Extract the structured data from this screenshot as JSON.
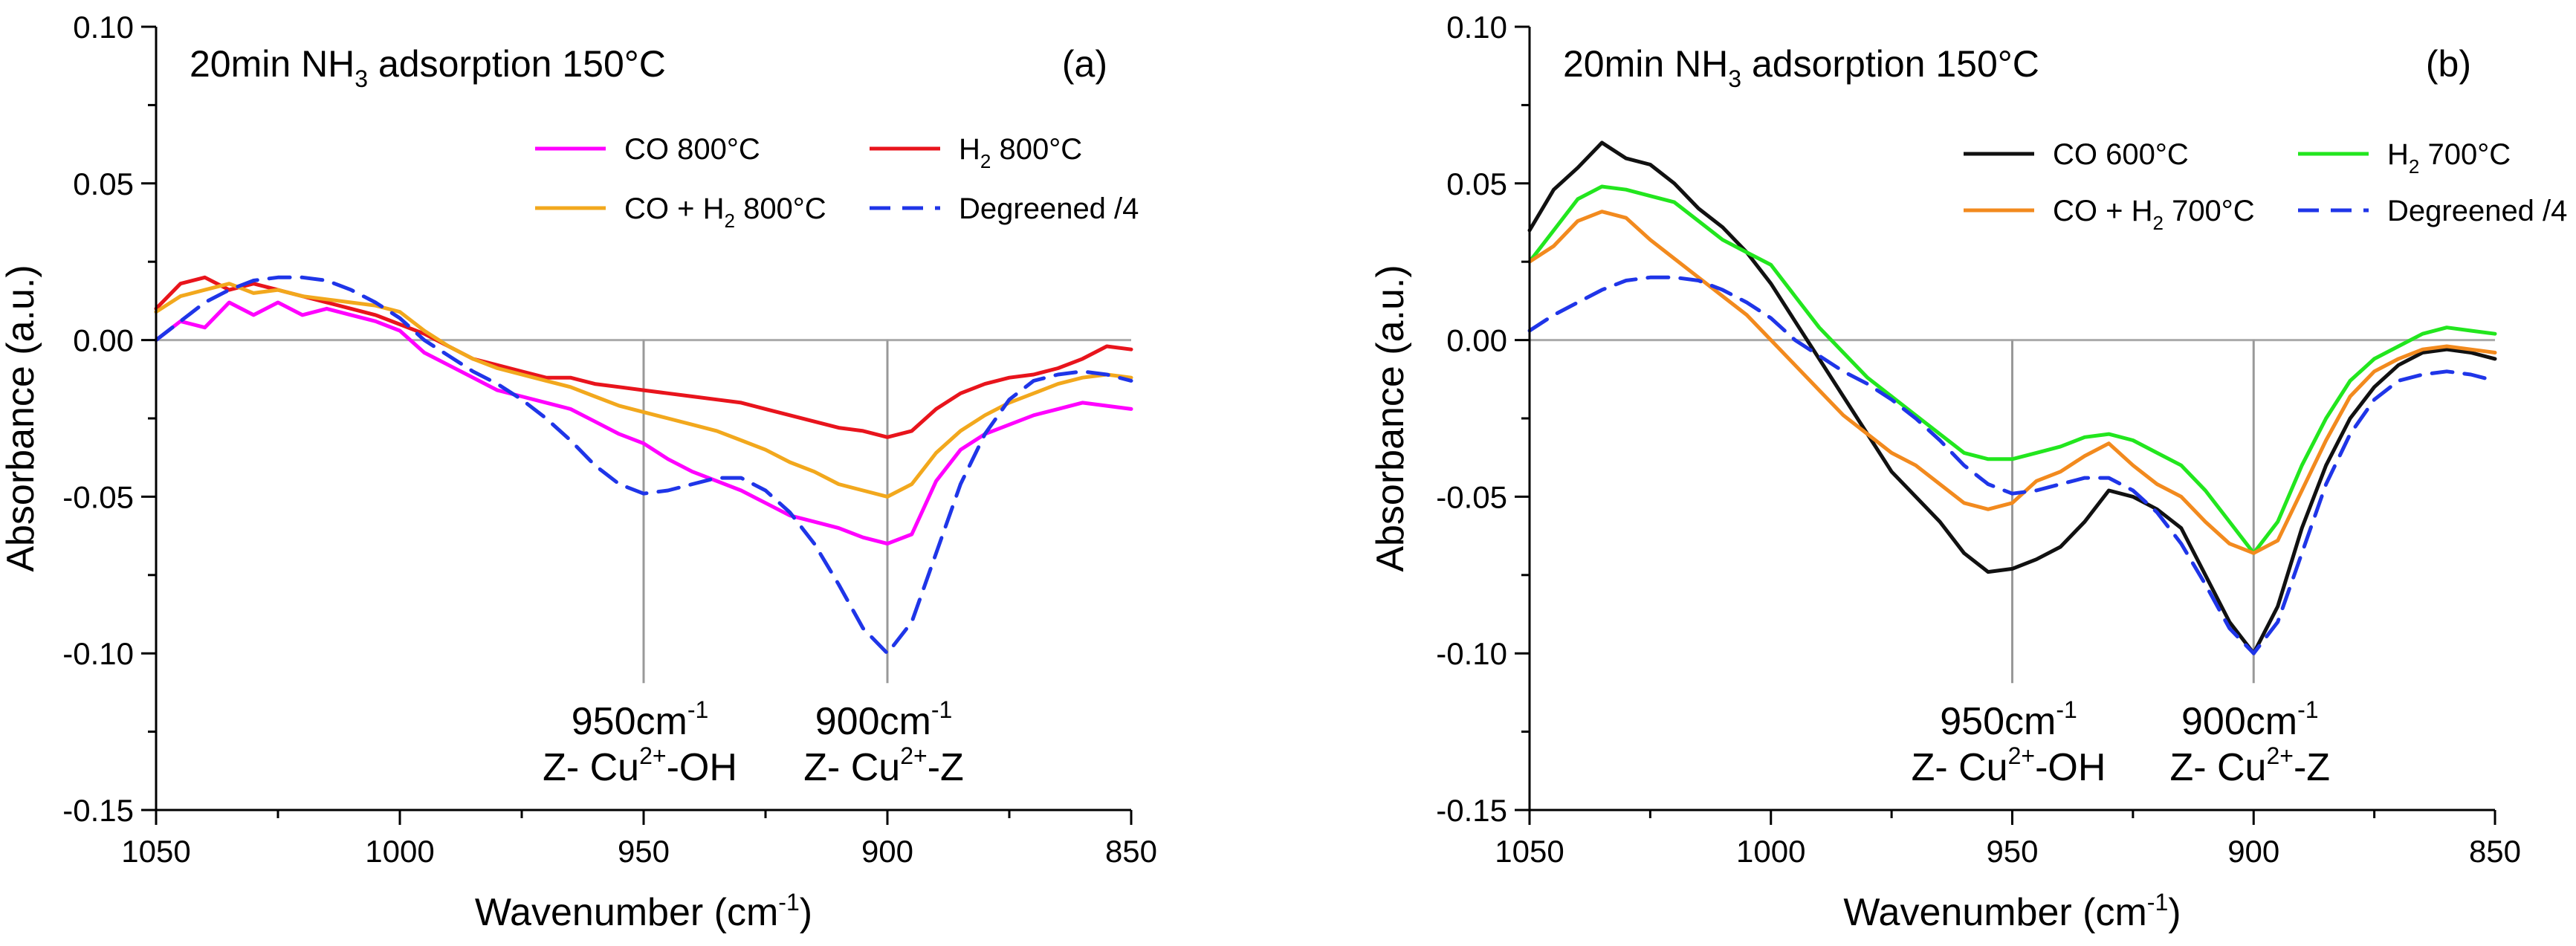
{
  "chart_data": [
    {
      "type": "line",
      "panel_label": "(a)",
      "title_main": "20min NH",
      "title_sub": "3",
      "title_rest": " adsorption 150°C",
      "xlabel": "Wavenumber (cm",
      "xlabel_sup": "-1",
      "xlabel_end": ")",
      "ylabel": "Absorbance (a.u.)",
      "xlim": [
        1050,
        850
      ],
      "ylim": [
        -0.15,
        0.1
      ],
      "xticks": [
        1050,
        1000,
        950,
        900,
        850
      ],
      "xtick_labels": [
        "1050",
        "1000",
        "950",
        "900",
        "850"
      ],
      "yticks": [
        0.1,
        0.05,
        0.0,
        -0.05,
        -0.1,
        -0.15
      ],
      "ytick_labels": [
        "0.10",
        "0.05",
        "0.00",
        "-0.05",
        "-0.10",
        "-0.15"
      ],
      "annotations": [
        {
          "x": 950,
          "line_top": -0.1,
          "line_bottom": 0.0,
          "line1": "950cm",
          "line1_sup": "-1",
          "line2a": "Z- Cu",
          "line2_sup": "2+",
          "line2b": "-OH"
        },
        {
          "x": 900,
          "line_top": -0.1,
          "line_bottom": 0.0,
          "line1": "900cm",
          "line1_sup": "-1",
          "line2a": "Z- Cu",
          "line2_sup": "2+",
          "line2b": "-Z"
        }
      ],
      "series": [
        {
          "name": "CO 800°C",
          "legend_main": "CO 800°C",
          "color": "#ff00ff",
          "dash": "solid",
          "x": [
            1050,
            1045,
            1040,
            1035,
            1030,
            1025,
            1020,
            1015,
            1010,
            1005,
            1000,
            995,
            990,
            985,
            980,
            975,
            970,
            965,
            960,
            955,
            950,
            945,
            940,
            935,
            930,
            925,
            920,
            915,
            910,
            905,
            900,
            895,
            890,
            885,
            880,
            875,
            870,
            865,
            860,
            855,
            850
          ],
          "y": [
            0.0,
            0.006,
            0.004,
            0.012,
            0.008,
            0.012,
            0.008,
            0.01,
            0.008,
            0.006,
            0.003,
            -0.004,
            -0.008,
            -0.012,
            -0.016,
            -0.018,
            -0.02,
            -0.022,
            -0.026,
            -0.03,
            -0.033,
            -0.038,
            -0.042,
            -0.045,
            -0.048,
            -0.052,
            -0.056,
            -0.058,
            -0.06,
            -0.063,
            -0.065,
            -0.062,
            -0.045,
            -0.035,
            -0.03,
            -0.027,
            -0.024,
            -0.022,
            -0.02,
            -0.021,
            -0.022
          ]
        },
        {
          "name": "H2 800°C",
          "legend_main": "H",
          "legend_sub": "2",
          "legend_rest": " 800°C",
          "color": "#e8141c",
          "dash": "solid",
          "x": [
            1050,
            1045,
            1040,
            1035,
            1030,
            1025,
            1020,
            1015,
            1010,
            1005,
            1000,
            995,
            990,
            985,
            980,
            975,
            970,
            965,
            960,
            955,
            950,
            945,
            940,
            935,
            930,
            925,
            920,
            915,
            910,
            905,
            900,
            895,
            890,
            885,
            880,
            875,
            870,
            865,
            860,
            855,
            850
          ],
          "y": [
            0.01,
            0.018,
            0.02,
            0.016,
            0.018,
            0.016,
            0.014,
            0.012,
            0.01,
            0.008,
            0.005,
            0.002,
            -0.002,
            -0.006,
            -0.008,
            -0.01,
            -0.012,
            -0.012,
            -0.014,
            -0.015,
            -0.016,
            -0.017,
            -0.018,
            -0.019,
            -0.02,
            -0.022,
            -0.024,
            -0.026,
            -0.028,
            -0.029,
            -0.031,
            -0.029,
            -0.022,
            -0.017,
            -0.014,
            -0.012,
            -0.011,
            -0.009,
            -0.006,
            -0.002,
            -0.003
          ]
        },
        {
          "name": "CO + H2 800°C",
          "legend_main": "CO + H",
          "legend_sub": "2",
          "legend_rest": " 800°C",
          "color": "#f2a81d",
          "dash": "solid",
          "x": [
            1050,
            1045,
            1040,
            1035,
            1030,
            1025,
            1020,
            1015,
            1010,
            1005,
            1000,
            995,
            990,
            985,
            980,
            975,
            970,
            965,
            960,
            955,
            950,
            945,
            940,
            935,
            930,
            925,
            920,
            915,
            910,
            905,
            900,
            895,
            890,
            885,
            880,
            875,
            870,
            865,
            860,
            855,
            850
          ],
          "y": [
            0.009,
            0.014,
            0.016,
            0.018,
            0.015,
            0.016,
            0.014,
            0.013,
            0.012,
            0.011,
            0.009,
            0.003,
            -0.002,
            -0.006,
            -0.009,
            -0.011,
            -0.013,
            -0.015,
            -0.018,
            -0.021,
            -0.023,
            -0.025,
            -0.027,
            -0.029,
            -0.032,
            -0.035,
            -0.039,
            -0.042,
            -0.046,
            -0.048,
            -0.05,
            -0.046,
            -0.036,
            -0.029,
            -0.024,
            -0.02,
            -0.017,
            -0.014,
            -0.012,
            -0.011,
            -0.012
          ]
        },
        {
          "name": "Degreened /4",
          "legend_main": "Degreened /4",
          "color": "#1f35e8",
          "dash": "dashed",
          "x": [
            1050,
            1045,
            1040,
            1035,
            1030,
            1025,
            1020,
            1015,
            1010,
            1005,
            1000,
            995,
            990,
            985,
            980,
            975,
            970,
            965,
            960,
            955,
            950,
            945,
            940,
            935,
            930,
            925,
            920,
            915,
            910,
            905,
            900,
            895,
            890,
            885,
            880,
            875,
            870,
            865,
            860,
            855,
            850
          ],
          "y": [
            0.0,
            0.006,
            0.012,
            0.016,
            0.019,
            0.02,
            0.02,
            0.019,
            0.016,
            0.012,
            0.007,
            0.0,
            -0.005,
            -0.01,
            -0.014,
            -0.019,
            -0.025,
            -0.032,
            -0.04,
            -0.046,
            -0.049,
            -0.048,
            -0.046,
            -0.044,
            -0.044,
            -0.048,
            -0.055,
            -0.065,
            -0.078,
            -0.092,
            -0.1,
            -0.09,
            -0.068,
            -0.046,
            -0.03,
            -0.019,
            -0.013,
            -0.011,
            -0.01,
            -0.011,
            -0.013
          ]
        }
      ]
    },
    {
      "type": "line",
      "panel_label": "(b)",
      "title_main": "20min NH",
      "title_sub": "3",
      "title_rest": " adsorption 150°C",
      "xlabel": "Wavenumber (cm",
      "xlabel_sup": "-1",
      "xlabel_end": ")",
      "ylabel": "Absorbance (a.u.)",
      "xlim": [
        1050,
        850
      ],
      "ylim": [
        -0.15,
        0.1
      ],
      "xticks": [
        1050,
        1000,
        950,
        900,
        850
      ],
      "xtick_labels": [
        "1050",
        "1000",
        "950",
        "900",
        "850"
      ],
      "yticks": [
        0.1,
        0.05,
        0.0,
        -0.05,
        -0.1,
        -0.15
      ],
      "ytick_labels": [
        "0.10",
        "0.05",
        "0.00",
        "-0.05",
        "-0.10",
        "-0.15"
      ],
      "annotations": [
        {
          "x": 950,
          "line_top": -0.1,
          "line_bottom": 0.0,
          "line1": "950cm",
          "line1_sup": "-1",
          "line2a": "Z- Cu",
          "line2_sup": "2+",
          "line2b": "-OH"
        },
        {
          "x": 900,
          "line_top": -0.1,
          "line_bottom": 0.0,
          "line1": "900cm",
          "line1_sup": "-1",
          "line2a": "Z- Cu",
          "line2_sup": "2+",
          "line2b": "-Z"
        }
      ],
      "series": [
        {
          "name": "CO 600°C",
          "legend_main": "CO 600°C",
          "color": "#111111",
          "dash": "solid",
          "x": [
            1050,
            1045,
            1040,
            1035,
            1030,
            1025,
            1020,
            1015,
            1010,
            1005,
            1000,
            995,
            990,
            985,
            980,
            975,
            970,
            965,
            960,
            955,
            950,
            945,
            940,
            935,
            930,
            925,
            920,
            915,
            910,
            905,
            900,
            895,
            890,
            885,
            880,
            875,
            870,
            865,
            860,
            855,
            850
          ],
          "y": [
            0.035,
            0.048,
            0.055,
            0.063,
            0.058,
            0.056,
            0.05,
            0.042,
            0.036,
            0.028,
            0.018,
            0.006,
            -0.006,
            -0.018,
            -0.03,
            -0.042,
            -0.05,
            -0.058,
            -0.068,
            -0.074,
            -0.073,
            -0.07,
            -0.066,
            -0.058,
            -0.048,
            -0.05,
            -0.054,
            -0.06,
            -0.075,
            -0.09,
            -0.1,
            -0.085,
            -0.06,
            -0.04,
            -0.025,
            -0.015,
            -0.008,
            -0.004,
            -0.003,
            -0.004,
            -0.006
          ]
        },
        {
          "name": "H2 700°C",
          "legend_main": "H",
          "legend_sub": "2",
          "legend_rest": " 700°C",
          "color": "#22e61e",
          "dash": "solid",
          "x": [
            1050,
            1045,
            1040,
            1035,
            1030,
            1025,
            1020,
            1015,
            1010,
            1005,
            1000,
            995,
            990,
            985,
            980,
            975,
            970,
            965,
            960,
            955,
            950,
            945,
            940,
            935,
            930,
            925,
            920,
            915,
            910,
            905,
            900,
            895,
            890,
            885,
            880,
            875,
            870,
            865,
            860,
            855,
            850
          ],
          "y": [
            0.025,
            0.035,
            0.045,
            0.049,
            0.048,
            0.046,
            0.044,
            0.038,
            0.032,
            0.028,
            0.024,
            0.014,
            0.004,
            -0.004,
            -0.012,
            -0.018,
            -0.024,
            -0.03,
            -0.036,
            -0.038,
            -0.038,
            -0.036,
            -0.034,
            -0.031,
            -0.03,
            -0.032,
            -0.036,
            -0.04,
            -0.048,
            -0.058,
            -0.068,
            -0.058,
            -0.04,
            -0.025,
            -0.013,
            -0.006,
            -0.002,
            0.002,
            0.004,
            0.003,
            0.002
          ]
        },
        {
          "name": "CO + H2 700°C",
          "legend_main": "CO + H",
          "legend_sub": "2",
          "legend_rest": " 700°C",
          "color": "#f28a1e",
          "dash": "solid",
          "x": [
            1050,
            1045,
            1040,
            1035,
            1030,
            1025,
            1020,
            1015,
            1010,
            1005,
            1000,
            995,
            990,
            985,
            980,
            975,
            970,
            965,
            960,
            955,
            950,
            945,
            940,
            935,
            930,
            925,
            920,
            915,
            910,
            905,
            900,
            895,
            890,
            885,
            880,
            875,
            870,
            865,
            860,
            855,
            850
          ],
          "y": [
            0.025,
            0.03,
            0.038,
            0.041,
            0.039,
            0.032,
            0.026,
            0.02,
            0.014,
            0.008,
            0.0,
            -0.008,
            -0.016,
            -0.024,
            -0.03,
            -0.036,
            -0.04,
            -0.046,
            -0.052,
            -0.054,
            -0.052,
            -0.045,
            -0.042,
            -0.037,
            -0.033,
            -0.04,
            -0.046,
            -0.05,
            -0.058,
            -0.065,
            -0.068,
            -0.064,
            -0.048,
            -0.032,
            -0.018,
            -0.01,
            -0.006,
            -0.003,
            -0.002,
            -0.003,
            -0.004
          ]
        },
        {
          "name": "Degreened /4",
          "legend_main": "Degreened /4",
          "color": "#1f35e8",
          "dash": "dashed",
          "x": [
            1050,
            1045,
            1040,
            1035,
            1030,
            1025,
            1020,
            1015,
            1010,
            1005,
            1000,
            995,
            990,
            985,
            980,
            975,
            970,
            965,
            960,
            955,
            950,
            945,
            940,
            935,
            930,
            925,
            920,
            915,
            910,
            905,
            900,
            895,
            890,
            885,
            880,
            875,
            870,
            865,
            860,
            855,
            850
          ],
          "y": [
            0.003,
            0.008,
            0.012,
            0.016,
            0.019,
            0.02,
            0.02,
            0.019,
            0.016,
            0.012,
            0.007,
            0.0,
            -0.005,
            -0.01,
            -0.014,
            -0.019,
            -0.025,
            -0.032,
            -0.04,
            -0.046,
            -0.049,
            -0.048,
            -0.046,
            -0.044,
            -0.044,
            -0.048,
            -0.055,
            -0.065,
            -0.078,
            -0.092,
            -0.1,
            -0.09,
            -0.068,
            -0.046,
            -0.03,
            -0.019,
            -0.013,
            -0.011,
            -0.01,
            -0.011,
            -0.013
          ]
        }
      ]
    }
  ]
}
